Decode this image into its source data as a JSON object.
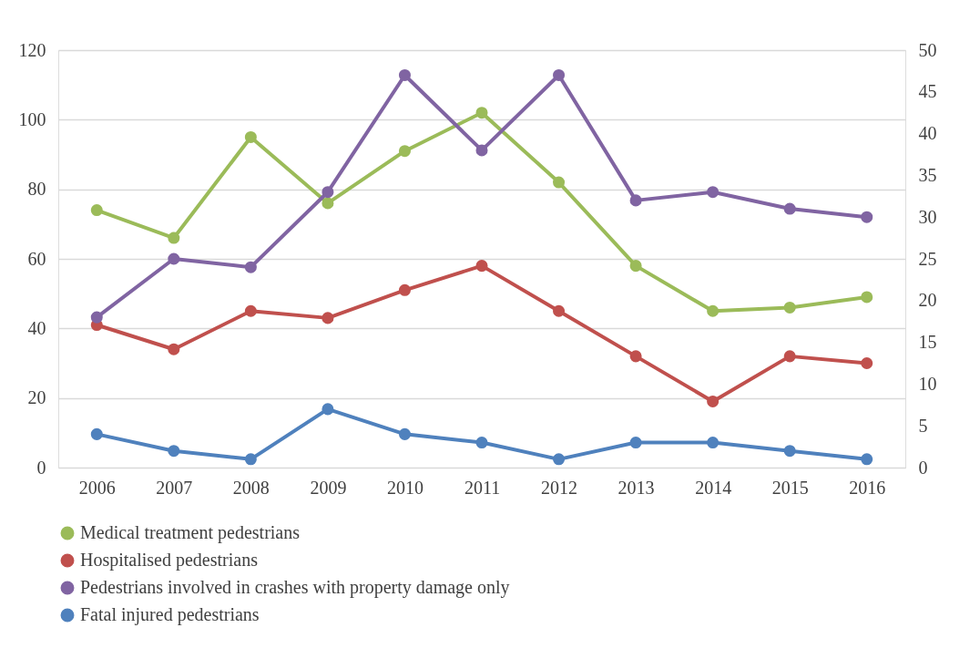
{
  "chart_data": {
    "type": "line",
    "categories": [
      "2006",
      "2007",
      "2008",
      "2009",
      "2010",
      "2011",
      "2012",
      "2013",
      "2014",
      "2015",
      "2016"
    ],
    "series": [
      {
        "name": "Medical treatment pedestrians",
        "color": "#9bbb59",
        "axis": "y",
        "values": [
          74,
          66,
          95,
          76,
          91,
          102,
          82,
          58,
          45,
          46,
          49
        ]
      },
      {
        "name": "Hospitalised pedestrians",
        "color": "#c0504d",
        "axis": "y",
        "values": [
          41,
          34,
          45,
          43,
          51,
          58,
          45,
          32,
          19,
          32,
          30
        ]
      },
      {
        "name": "Pedestrians involved in crashes with property damage only",
        "color": "#8064a2",
        "axis": "y2",
        "values": [
          18,
          25,
          24,
          33,
          47,
          38,
          47,
          32,
          33,
          31,
          30
        ]
      },
      {
        "name": "Fatal injured pedestrians",
        "color": "#4f81bd",
        "axis": "y2",
        "values": [
          4,
          2,
          1,
          7,
          4,
          3,
          1,
          3,
          3,
          2,
          1
        ]
      }
    ],
    "ylim": [
      0,
      120
    ],
    "yticks": [
      0,
      20,
      40,
      60,
      80,
      100,
      120
    ],
    "y2lim": [
      0,
      50
    ],
    "y2ticks": [
      0,
      5,
      10,
      15,
      20,
      25,
      30,
      35,
      40,
      45,
      50
    ],
    "grid": "y",
    "legend": "bottom",
    "marker": "circle",
    "line_style": "solid"
  }
}
